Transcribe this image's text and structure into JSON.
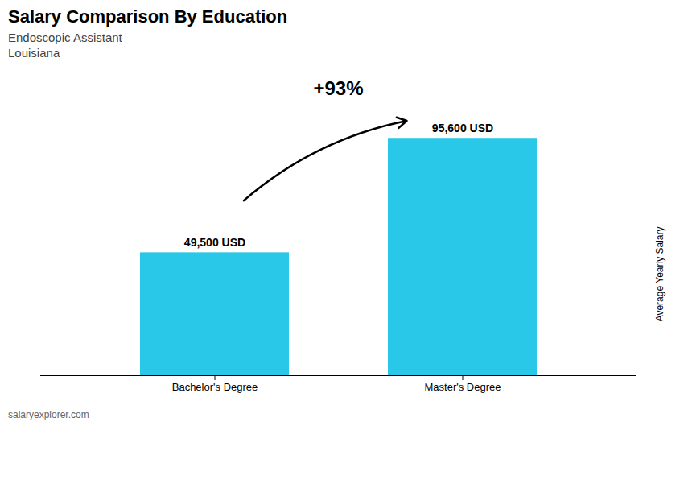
{
  "chart_data": {
    "type": "bar",
    "title": "Salary Comparison By Education",
    "subtitle": [
      "Endoscopic Assistant",
      "Louisiana"
    ],
    "caption": "salaryexplorer.com",
    "y_label": "Average Yearly Salary",
    "categories": [
      "Bachelor's Degree",
      "Master's Degree"
    ],
    "values": [
      49500,
      95600
    ],
    "value_labels": [
      "49,500 USD",
      "95,600 USD"
    ],
    "data_labels": true,
    "annotations": [
      "+93%"
    ],
    "color": "#29c8e8",
    "ylim": [
      0,
      120000
    ],
    "tick_labels": "x",
    "grid": false
  }
}
